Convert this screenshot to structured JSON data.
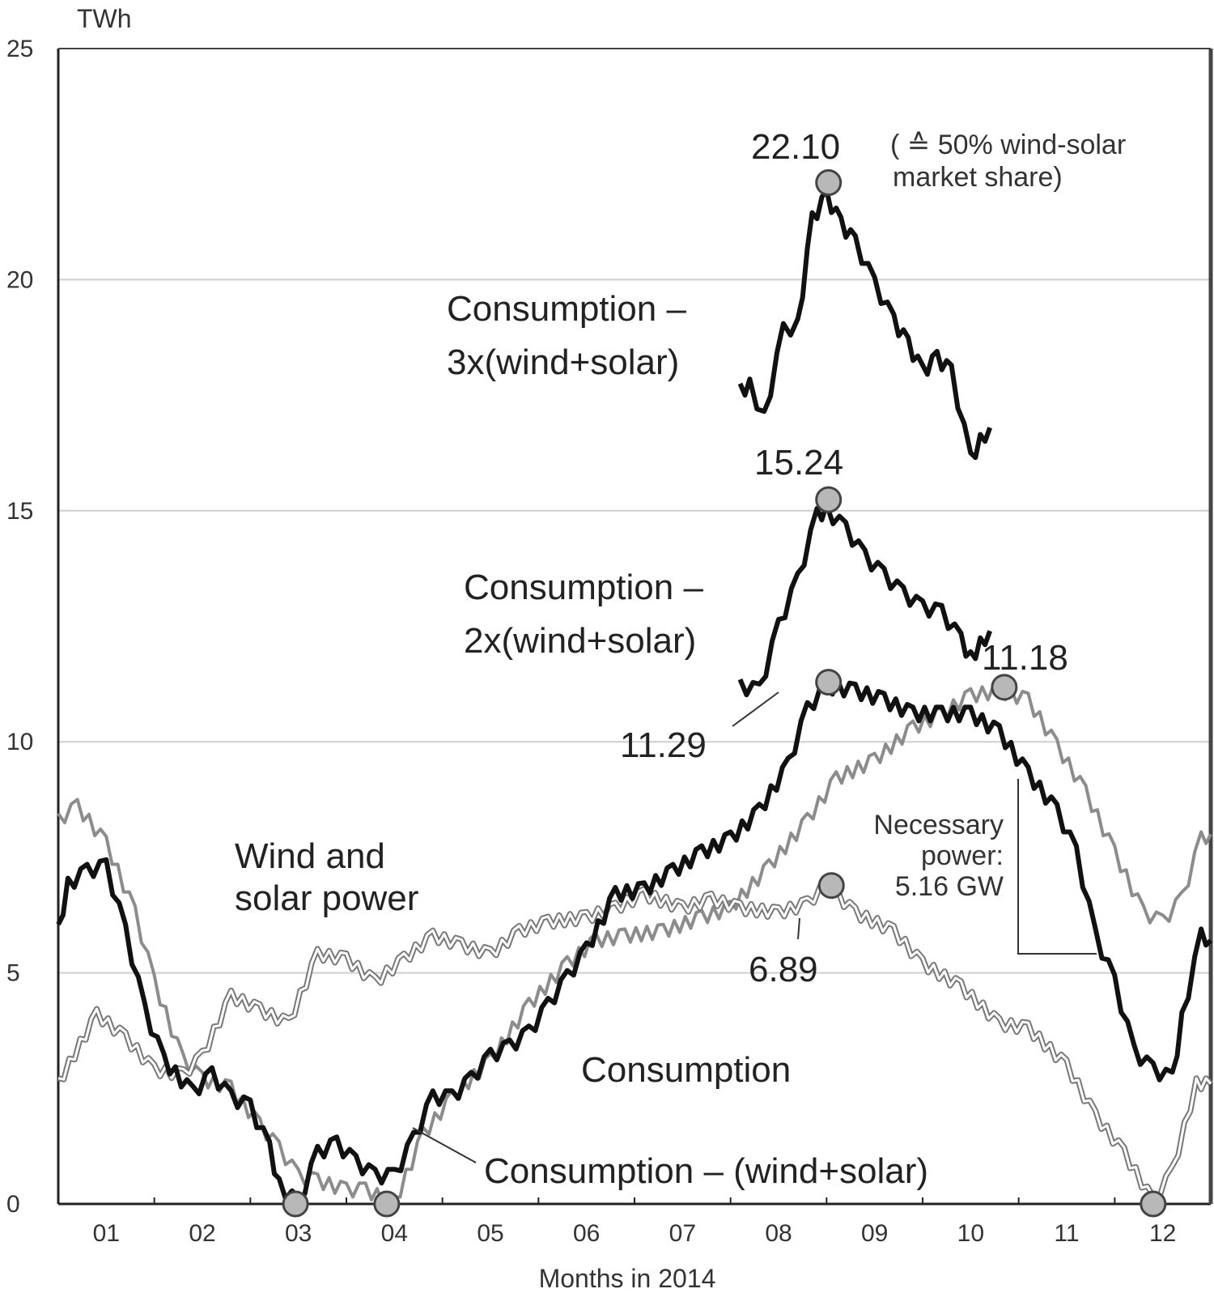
{
  "chart_data": {
    "type": "line",
    "ylabel": "TWh",
    "xlabel": "Months in 2014",
    "ylim": [
      0,
      25
    ],
    "xlim": [
      0.5,
      12.5
    ],
    "yticks": [
      "0",
      "5",
      "10",
      "15",
      "20",
      "25"
    ],
    "xticks": [
      "01",
      "02",
      "03",
      "04",
      "05",
      "06",
      "07",
      "08",
      "09",
      "10",
      "11",
      "12"
    ],
    "grid": "horizontal",
    "series": [
      {
        "name": "Consumption",
        "color": "#8c8c8c",
        "points": [
          [
            0.5,
            8.3
          ],
          [
            0.7,
            8.6
          ],
          [
            1.0,
            7.8
          ],
          [
            1.3,
            6.3
          ],
          [
            1.5,
            4.8
          ],
          [
            1.8,
            3.1
          ],
          [
            2.0,
            2.7
          ],
          [
            2.3,
            2.5
          ],
          [
            2.6,
            1.7
          ],
          [
            2.8,
            1.2
          ],
          [
            3.0,
            0.6
          ],
          [
            3.2,
            0.5
          ],
          [
            3.5,
            0.3
          ],
          [
            3.7,
            0.3
          ],
          [
            4.0,
            0.0
          ],
          [
            4.3,
            1.5
          ],
          [
            4.6,
            2.3
          ],
          [
            5.0,
            3.1
          ],
          [
            5.4,
            4.3
          ],
          [
            5.8,
            5.2
          ],
          [
            6.1,
            5.7
          ],
          [
            6.4,
            5.8
          ],
          [
            6.8,
            5.9
          ],
          [
            7.2,
            6.2
          ],
          [
            7.5,
            6.4
          ],
          [
            7.9,
            7.3
          ],
          [
            8.3,
            8.3
          ],
          [
            8.6,
            9.2
          ],
          [
            9.0,
            9.6
          ],
          [
            9.4,
            10.3
          ],
          [
            9.7,
            10.6
          ],
          [
            10.0,
            11.0
          ],
          [
            10.3,
            11.1
          ],
          [
            10.6,
            10.9
          ],
          [
            10.9,
            9.9
          ],
          [
            11.2,
            8.9
          ],
          [
            11.5,
            7.6
          ],
          [
            11.8,
            6.3
          ],
          [
            12.0,
            6.1
          ],
          [
            12.2,
            6.6
          ],
          [
            12.4,
            7.9
          ],
          [
            12.5,
            8.0
          ]
        ]
      },
      {
        "name": "Wind and solar power",
        "color": "#777777",
        "style": "double",
        "points": [
          [
            0.5,
            2.6
          ],
          [
            0.9,
            4.1
          ],
          [
            1.2,
            3.6
          ],
          [
            1.5,
            2.9
          ],
          [
            1.8,
            2.8
          ],
          [
            2.0,
            3.2
          ],
          [
            2.3,
            4.5
          ],
          [
            2.6,
            4.2
          ],
          [
            2.9,
            3.9
          ],
          [
            3.2,
            5.4
          ],
          [
            3.5,
            5.3
          ],
          [
            3.8,
            4.8
          ],
          [
            4.1,
            5.3
          ],
          [
            4.4,
            5.8
          ],
          [
            4.7,
            5.6
          ],
          [
            5.0,
            5.4
          ],
          [
            5.3,
            5.9
          ],
          [
            5.6,
            6.1
          ],
          [
            6.0,
            6.2
          ],
          [
            6.3,
            6.4
          ],
          [
            6.6,
            6.7
          ],
          [
            7.0,
            6.4
          ],
          [
            7.3,
            6.6
          ],
          [
            7.6,
            6.4
          ],
          [
            8.0,
            6.3
          ],
          [
            8.3,
            6.5
          ],
          [
            8.5,
            6.9
          ],
          [
            8.8,
            6.3
          ],
          [
            9.2,
            5.9
          ],
          [
            9.5,
            5.2
          ],
          [
            9.9,
            4.7
          ],
          [
            10.3,
            3.9
          ],
          [
            10.6,
            3.8
          ],
          [
            11.0,
            3.0
          ],
          [
            11.3,
            1.9
          ],
          [
            11.6,
            1.1
          ],
          [
            11.9,
            0.05
          ],
          [
            12.1,
            0.7
          ],
          [
            12.35,
            2.6
          ],
          [
            12.5,
            2.6
          ]
        ]
      },
      {
        "name": "Consumption – (wind+solar)",
        "color": "#111111",
        "points": [
          [
            0.5,
            5.9
          ],
          [
            0.6,
            6.9
          ],
          [
            0.8,
            7.2
          ],
          [
            1.0,
            7.3
          ],
          [
            1.2,
            5.9
          ],
          [
            1.4,
            4.2
          ],
          [
            1.6,
            3.1
          ],
          [
            1.9,
            2.4
          ],
          [
            2.1,
            2.8
          ],
          [
            2.3,
            2.3
          ],
          [
            2.5,
            2.1
          ],
          [
            2.7,
            1.2
          ],
          [
            2.8,
            0.4
          ],
          [
            3.0,
            0.0
          ],
          [
            3.2,
            1.1
          ],
          [
            3.4,
            1.3
          ],
          [
            3.6,
            0.9
          ],
          [
            3.8,
            0.6
          ],
          [
            4.0,
            0.6
          ],
          [
            4.2,
            1.4
          ],
          [
            4.4,
            2.3
          ],
          [
            4.6,
            2.3
          ],
          [
            4.8,
            2.7
          ],
          [
            5.0,
            3.2
          ],
          [
            5.2,
            3.4
          ],
          [
            5.4,
            3.7
          ],
          [
            5.6,
            4.3
          ],
          [
            5.8,
            4.9
          ],
          [
            6.0,
            5.5
          ],
          [
            6.3,
            6.7
          ],
          [
            6.6,
            6.8
          ],
          [
            6.9,
            7.2
          ],
          [
            7.2,
            7.6
          ],
          [
            7.5,
            7.9
          ],
          [
            7.8,
            8.5
          ],
          [
            8.1,
            9.5
          ],
          [
            8.3,
            10.7
          ],
          [
            8.5,
            11.2
          ],
          [
            8.8,
            11.1
          ],
          [
            9.1,
            10.9
          ],
          [
            9.4,
            10.6
          ],
          [
            9.7,
            10.6
          ],
          [
            10.0,
            10.6
          ],
          [
            10.3,
            10.2
          ],
          [
            10.6,
            9.3
          ],
          [
            10.9,
            8.5
          ],
          [
            11.1,
            7.6
          ],
          [
            11.3,
            5.8
          ],
          [
            11.5,
            4.8
          ],
          [
            11.7,
            3.3
          ],
          [
            11.9,
            2.9
          ],
          [
            12.1,
            2.7
          ],
          [
            12.2,
            4.0
          ],
          [
            12.4,
            5.8
          ],
          [
            12.5,
            5.7
          ]
        ]
      },
      {
        "name": "Consumption – 2x(wind+solar)",
        "color": "#111111",
        "points": [
          [
            7.6,
            11.2
          ],
          [
            7.8,
            11.1
          ],
          [
            8.0,
            12.5
          ],
          [
            8.2,
            13.5
          ],
          [
            8.4,
            14.9
          ],
          [
            8.5,
            15.0
          ],
          [
            8.7,
            14.6
          ],
          [
            8.9,
            14.0
          ],
          [
            9.1,
            13.6
          ],
          [
            9.3,
            13.2
          ],
          [
            9.5,
            12.9
          ],
          [
            9.7,
            12.8
          ],
          [
            9.9,
            12.2
          ],
          [
            10.0,
            11.8
          ],
          [
            10.1,
            12.1
          ],
          [
            10.2,
            12.4
          ]
        ]
      },
      {
        "name": "Consumption – 3x(wind+solar)",
        "color": "#111111",
        "points": [
          [
            7.6,
            17.6
          ],
          [
            7.7,
            17.7
          ],
          [
            7.85,
            17.0
          ],
          [
            8.05,
            18.9
          ],
          [
            8.2,
            19.0
          ],
          [
            8.35,
            21.3
          ],
          [
            8.5,
            21.8
          ],
          [
            8.65,
            21.2
          ],
          [
            8.8,
            20.8
          ],
          [
            9.0,
            19.9
          ],
          [
            9.2,
            19.1
          ],
          [
            9.35,
            18.6
          ],
          [
            9.5,
            18.0
          ],
          [
            9.65,
            18.3
          ],
          [
            9.8,
            18.0
          ],
          [
            10.0,
            16.1
          ],
          [
            10.1,
            16.5
          ],
          [
            10.2,
            16.8
          ]
        ]
      }
    ],
    "markers": [
      {
        "x": 8.52,
        "y": 22.1
      },
      {
        "x": 8.52,
        "y": 15.24
      },
      {
        "x": 8.52,
        "y": 11.29
      },
      {
        "x": 10.35,
        "y": 11.18
      },
      {
        "x": 8.55,
        "y": 6.89
      },
      {
        "x": 2.97,
        "y": 0
      },
      {
        "x": 3.92,
        "y": 0
      },
      {
        "x": 11.9,
        "y": 0
      }
    ],
    "annotations": {
      "peak3": "22.10",
      "peak3_note_line1": "( ≙ 50% wind-solar",
      "peak3_note_line2": "market share)",
      "peak2": "15.24",
      "peak1": "11.29",
      "cons_peak": "11.18",
      "ws_peak": "6.89",
      "label3_line1": "Consumption –",
      "label3_line2": "3x(wind+solar)",
      "label2_line1": "Consumption –",
      "label2_line2": "2x(wind+solar)",
      "ws_line1": "Wind and",
      "ws_line2": "solar power",
      "cons_label": "Consumption",
      "net_label": "Consumption – (wind+solar)",
      "nec_line1": "Necessary",
      "nec_line2": "power:",
      "nec_line3": "5.16 GW"
    }
  }
}
